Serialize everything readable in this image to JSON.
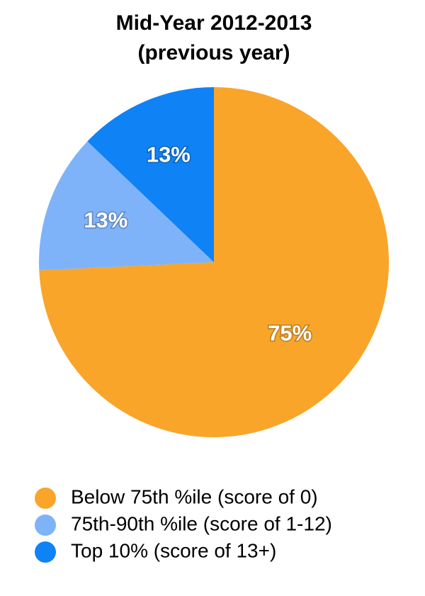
{
  "chart_data": {
    "type": "pie",
    "title": "Mid-Year 2012-2013",
    "subtitle": "(previous year)",
    "categories": [
      "Below 75th %ile (score of 0)",
      "75th-90th %ile (score of 1-12)",
      "Top 10% (score of 13+)"
    ],
    "values": [
      75,
      13,
      13
    ],
    "value_labels": [
      "75%",
      "13%",
      "13%"
    ],
    "colors": [
      "#f8a52a",
      "#7fb3f9",
      "#0f82f6"
    ],
    "legend": "bottom"
  }
}
